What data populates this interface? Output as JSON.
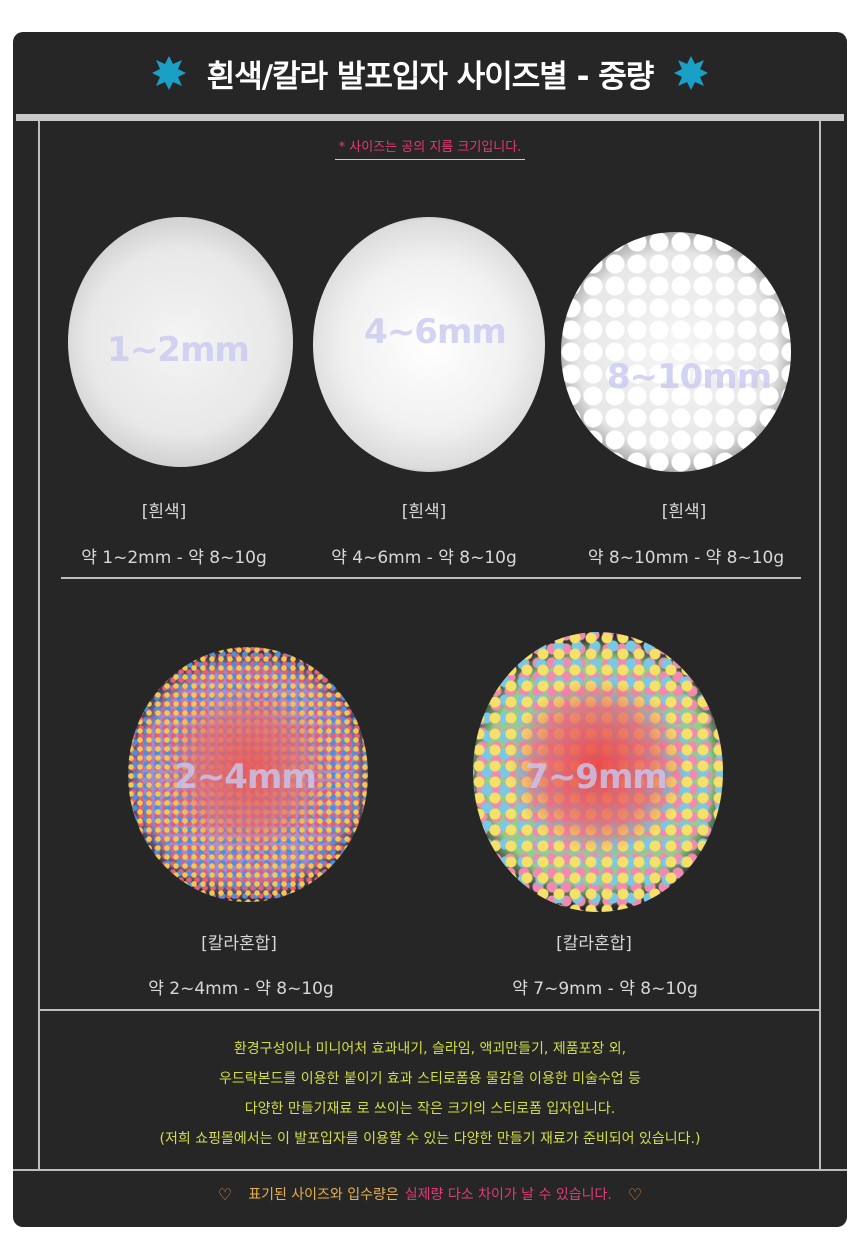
{
  "header": {
    "title": "흰색/칼라 발포입자 사이즈별 - 중량",
    "colors": {
      "star": "#1aa0c7",
      "background": "#262626"
    }
  },
  "note": "* 사이즈는 공의 지름 크기입니다.",
  "white_items": [
    {
      "size_label": "1~2mm",
      "tag": "[흰색]",
      "info": "약 1~2mm - 약 8~10g"
    },
    {
      "size_label": "4~6mm",
      "tag": "[흰색]",
      "info": "약 4~6mm - 약 8~10g"
    },
    {
      "size_label": "8~10mm",
      "tag": "[흰색]",
      "info": "약 8~10mm - 약 8~10g"
    }
  ],
  "color_items": [
    {
      "size_label": "2~4mm",
      "tag": "[칼라혼합]",
      "info": "약 2~4mm - 약 8~10g"
    },
    {
      "size_label": "7~9mm",
      "tag": "[칼라혼합]",
      "info": "약 7~9mm - 약 8~10g"
    }
  ],
  "description": [
    "환경구성이나 미니어처 효과내기, 슬라임, 액괴만들기, 제품포장 외,",
    "우드락본드를 이용한 붙이기 효과  스티로폼용 물감을 이용한 미술수업 등",
    "다양한 만들기재료 로 쓰이는 작은 크기의 스티로폼 입자입니다.",
    "(저희 쇼핑몰에서는 이 발포입자를 이용할 수 있는 다양한 만들기 재료가 준비되어 있습니다.)"
  ],
  "footer": {
    "part_a": "표기된 사이즈와 입수량은",
    "part_b": "실제량 다소 차이가 날 수 있습니다."
  }
}
